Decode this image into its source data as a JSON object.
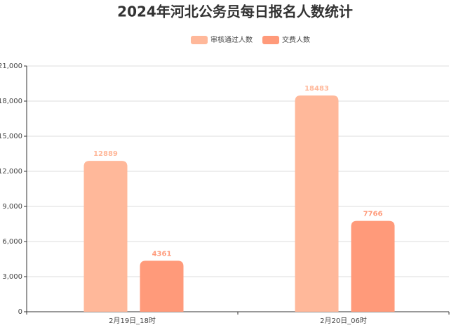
{
  "chart_data": {
    "type": "bar",
    "title": "2024年河北公务员每日报名人数统计",
    "categories": [
      "2月19日_18时",
      "2月20日_06时"
    ],
    "series": [
      {
        "name": "审核通过人数",
        "color": "#ffb89a",
        "values": [
          12889,
          18483
        ]
      },
      {
        "name": "交费人数",
        "color": "#ff9a7a",
        "values": [
          4361,
          7766
        ]
      }
    ],
    "ylim": [
      0,
      21000
    ],
    "yticks": [
      0,
      {
        "value": 3000,
        "label": "3,000"
      },
      {
        "value": 6000,
        "label": "6,000"
      },
      {
        "value": 9000,
        "label": "9,000"
      },
      {
        "value": 12000,
        "label": "12,000"
      },
      {
        "value": 15000,
        "label": "15,000"
      },
      {
        "value": 18000,
        "label": "18,000"
      },
      {
        "value": 21000,
        "label": "21,000"
      }
    ],
    "grid": true,
    "legend": "top"
  }
}
